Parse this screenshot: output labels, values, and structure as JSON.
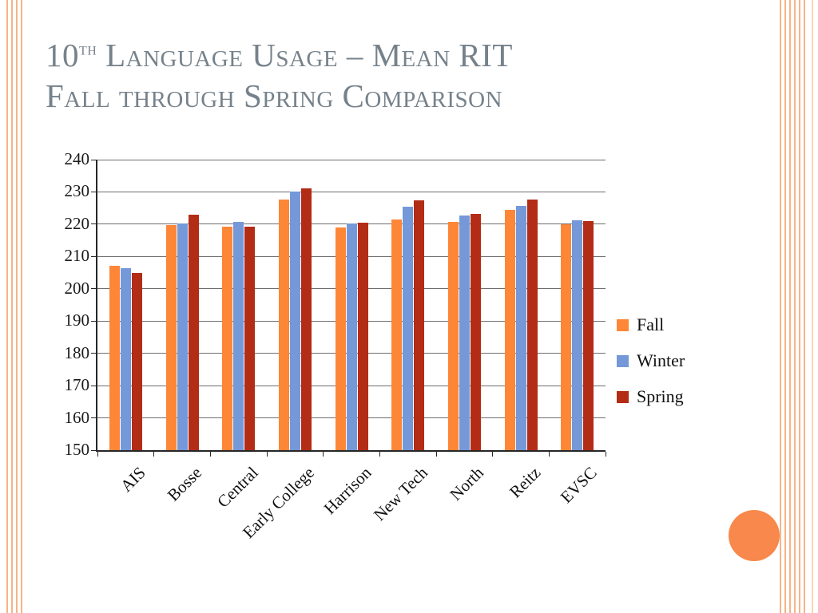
{
  "slide": {
    "title": {
      "prefix": "10",
      "superscript": "th",
      "line1_rest": " Language Usage – Mean RIT",
      "line2": "Fall through Spring Comparison"
    },
    "theme": {
      "title_color": "#76828b",
      "stripe_color": "#f6b488",
      "circle_color": "#f8884b"
    }
  },
  "chart_data": {
    "type": "bar",
    "title": "",
    "xlabel": "",
    "ylabel": "",
    "categories": [
      "AIS",
      "Bosse",
      "Central",
      "Early College",
      "Harrison",
      "New Tech",
      "North",
      "Reitz",
      "EVSC"
    ],
    "series": [
      {
        "name": "Fall",
        "color": "#fe8637",
        "values": [
          207.2,
          219.7,
          219.2,
          227.6,
          219.0,
          221.5,
          220.7,
          224.5,
          220.0
        ]
      },
      {
        "name": "Winter",
        "color": "#7598d9",
        "values": [
          206.4,
          220.2,
          220.8,
          230.0,
          220.2,
          225.5,
          222.8,
          225.7,
          221.2
        ]
      },
      {
        "name": "Spring",
        "color": "#b32c16",
        "values": [
          204.9,
          223.0,
          219.2,
          231.0,
          220.5,
          227.5,
          223.2,
          227.7,
          221.0
        ]
      }
    ],
    "ylim": [
      150,
      240
    ],
    "ytick_step": 10,
    "grid": true,
    "legend_position": "right"
  }
}
